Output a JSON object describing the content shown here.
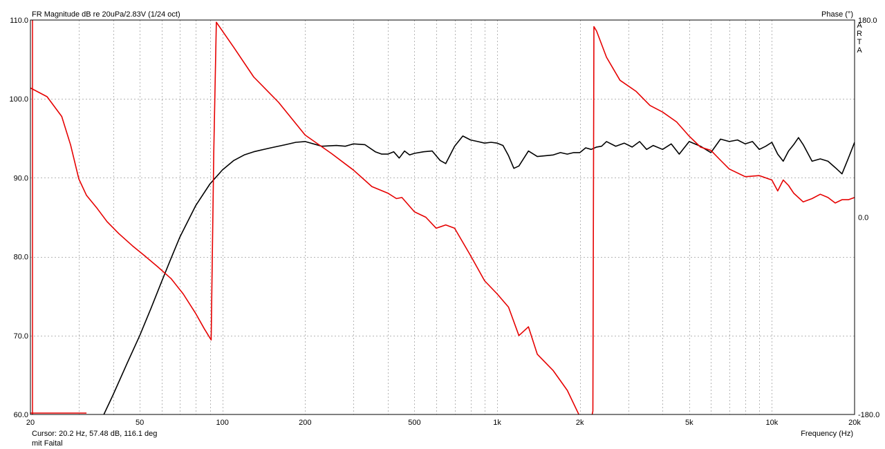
{
  "chart_data": {
    "type": "line",
    "title": "FR Magnitude dB re 20uPa/2.83V (1/24 oct)",
    "right_axis_title": "Phase (°)",
    "brand": "ARTA",
    "xlabel": "Frequency (Hz)",
    "x_scale": "log",
    "xlim": [
      20,
      20000
    ],
    "ylim": [
      60,
      110
    ],
    "y2lim": [
      -180,
      180
    ],
    "grid": true,
    "x_ticks": [
      {
        "value": 20,
        "label": "20"
      },
      {
        "value": 50,
        "label": "50"
      },
      {
        "value": 100,
        "label": "100"
      },
      {
        "value": 200,
        "label": "200"
      },
      {
        "value": 500,
        "label": "500"
      },
      {
        "value": 1000,
        "label": "1k"
      },
      {
        "value": 2000,
        "label": "2k"
      },
      {
        "value": 5000,
        "label": "5k"
      },
      {
        "value": 10000,
        "label": "10k"
      },
      {
        "value": 20000,
        "label": "20k"
      }
    ],
    "y_ticks": [
      {
        "value": 110,
        "label": "110.0"
      },
      {
        "value": 100,
        "label": "100.0"
      },
      {
        "value": 90,
        "label": "90.0"
      },
      {
        "value": 80,
        "label": "80.0"
      },
      {
        "value": 70,
        "label": "70.0"
      },
      {
        "value": 60,
        "label": "60.0"
      }
    ],
    "y2_ticks": [
      {
        "value": 180,
        "label": "180.0"
      },
      {
        "value": 0,
        "label": "0.0"
      },
      {
        "value": -180,
        "label": "-180.0"
      }
    ],
    "series": [
      {
        "axis": "left",
        "color": "#000000",
        "x": [
          37,
          40,
          45,
          50,
          55,
          60,
          65,
          70,
          80,
          90,
          100,
          110,
          120,
          130,
          150,
          170,
          185,
          200,
          230,
          260,
          280,
          300,
          330,
          360,
          380,
          400,
          420,
          440,
          460,
          480,
          500,
          540,
          580,
          620,
          650,
          700,
          750,
          800,
          850,
          900,
          950,
          1000,
          1050,
          1100,
          1150,
          1200,
          1300,
          1400,
          1500,
          1600,
          1700,
          1800,
          1900,
          2000,
          2100,
          2200,
          2300,
          2400,
          2500,
          2700,
          2900,
          3100,
          3300,
          3500,
          3700,
          4000,
          4300,
          4600,
          5000,
          5500,
          6000,
          6500,
          7000,
          7500,
          8000,
          8500,
          9000,
          9500,
          10000,
          10500,
          11000,
          11500,
          12000,
          12500,
          13000,
          14000,
          15000,
          16000,
          17000,
          18000,
          19000,
          20000
        ],
        "y": [
          60.0,
          62.5,
          66.5,
          70.0,
          73.5,
          76.8,
          79.8,
          82.5,
          86.5,
          89.2,
          91.0,
          92.2,
          92.9,
          93.3,
          93.8,
          94.2,
          94.5,
          94.6,
          94.0,
          94.1,
          94.0,
          94.3,
          94.2,
          93.3,
          93.0,
          93.0,
          93.3,
          92.5,
          93.4,
          92.9,
          93.1,
          93.3,
          93.4,
          92.2,
          91.8,
          94.0,
          95.3,
          94.8,
          94.6,
          94.4,
          94.5,
          94.4,
          94.1,
          92.8,
          91.2,
          91.5,
          93.4,
          92.7,
          92.8,
          92.9,
          93.2,
          93.0,
          93.2,
          93.2,
          93.8,
          93.6,
          93.9,
          94.0,
          94.6,
          94.0,
          94.4,
          93.9,
          94.6,
          93.6,
          94.1,
          93.6,
          94.3,
          93.0,
          94.6,
          94.0,
          93.2,
          94.9,
          94.6,
          94.8,
          94.3,
          94.6,
          93.6,
          94.0,
          94.5,
          93.0,
          92.1,
          93.4,
          94.2,
          95.1,
          94.2,
          92.1,
          92.4,
          92.1,
          91.3,
          90.5,
          92.5,
          94.5
        ]
      },
      {
        "axis": "right",
        "color": "#e60000",
        "x": [
          20,
          23,
          26,
          28,
          30,
          32,
          35,
          38,
          42,
          47,
          52,
          58,
          65,
          72,
          80,
          86,
          91,
          93,
          95,
          110,
          130,
          160,
          200,
          250,
          300,
          350,
          400,
          430,
          450,
          500,
          550,
          600,
          650,
          700,
          800,
          900,
          1000,
          1100,
          1200,
          1300,
          1400,
          1600,
          1800,
          2000,
          2150,
          2230,
          2250,
          2300,
          2500,
          2800,
          3200,
          3600,
          4000,
          4500,
          5000,
          5500,
          6000,
          6500,
          7000,
          8000,
          9000,
          10000,
          10500,
          11000,
          11500,
          12000,
          13000,
          14000,
          15000,
          16000,
          17000,
          18000,
          19000,
          20000
        ],
        "y": [
          118,
          110,
          92,
          66,
          35,
          20,
          8,
          -4,
          -15,
          -26,
          -35,
          -45,
          -56,
          -70,
          -88,
          -102,
          -112,
          60,
          178,
          155,
          128,
          105,
          75,
          58,
          43,
          28,
          22,
          17,
          18,
          5,
          0,
          -10,
          -7,
          -10,
          -35,
          -58,
          -70,
          -82,
          -108,
          -100,
          -125,
          -140,
          -158,
          -182,
          -196,
          -177,
          174,
          170,
          146,
          125,
          115,
          102,
          96,
          87,
          74,
          64,
          61,
          52,
          44,
          37,
          38,
          34,
          24,
          34,
          29,
          22,
          14,
          17,
          21,
          18,
          13,
          16,
          16,
          18
        ]
      }
    ]
  },
  "footer": {
    "cursor": "Cursor: 20.2 Hz, 57.48 dB, 116.1 deg",
    "note": "mit Faital"
  }
}
